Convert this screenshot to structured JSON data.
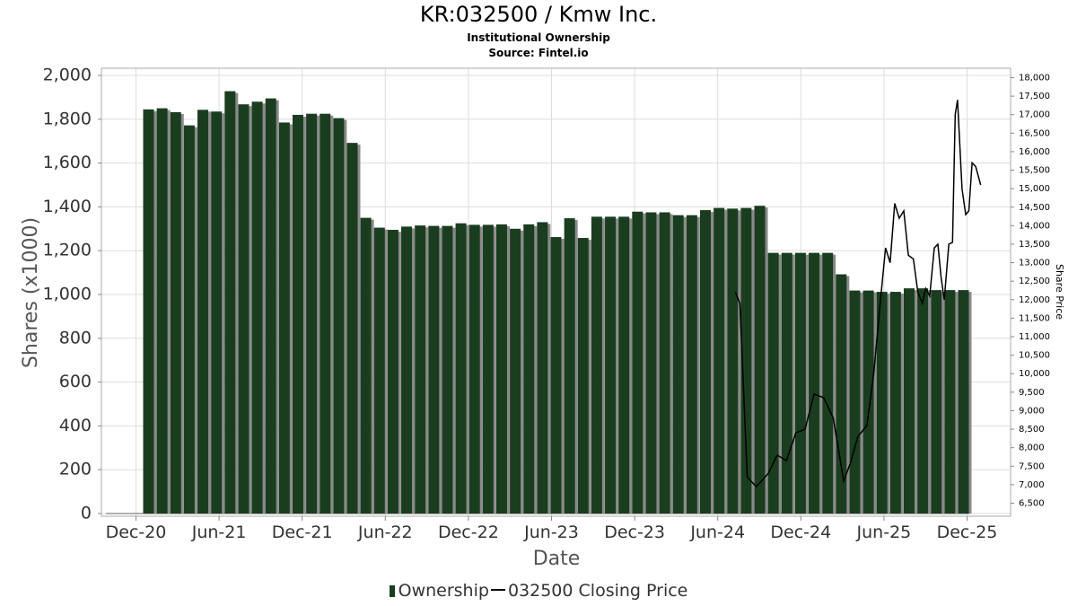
{
  "title": "KR:032500 / Kmw Inc.",
  "subtitle1": "Institutional Ownership",
  "subtitle2": "Source: Fintel.io",
  "legend": {
    "ownership": "Ownership",
    "price": "032500 Closing Price"
  },
  "colors": {
    "bar": "#1a3d1f",
    "bar_shadow": "#8a8a8a",
    "price_line": "#000000",
    "grid": "#dddddd"
  },
  "chart_data": {
    "type": "bar",
    "xlabel": "Date",
    "ylabel": "Shares (x1000)",
    "y2label": "Share Price",
    "ylim": [
      0,
      2000
    ],
    "y2lim": [
      6300,
      18200
    ],
    "grid": true,
    "legend_position": "bottom",
    "x_ticks": [
      "Dec-20",
      "Jun-21",
      "Dec-21",
      "Jun-22",
      "Dec-22",
      "Jun-23",
      "Dec-23",
      "Jun-24",
      "Dec-24",
      "Jun-25",
      "Dec-25"
    ],
    "y_ticks": [
      "0",
      "200",
      "400",
      "600",
      "800",
      "1,000",
      "1,200",
      "1,400",
      "1,600",
      "1,800",
      "2,000"
    ],
    "y2_ticks": [
      "6,500",
      "7,000",
      "7,500",
      "8,000",
      "8,500",
      "9,000",
      "9,500",
      "10,000",
      "10,500",
      "11,000",
      "11,500",
      "12,000",
      "12,500",
      "13,000",
      "13,500",
      "14,000",
      "14,500",
      "15,000",
      "15,500",
      "16,000",
      "16,500",
      "17,000",
      "17,500",
      "18,000"
    ],
    "series": [
      {
        "name": "Ownership",
        "type": "bar",
        "values": [
          1845,
          1850,
          1832,
          1772,
          1843,
          1835,
          1928,
          1868,
          1880,
          1895,
          1785,
          1820,
          1825,
          1825,
          1805,
          1692,
          1350,
          1305,
          1295,
          1310,
          1315,
          1313,
          1313,
          1325,
          1318,
          1318,
          1320,
          1300,
          1320,
          1330,
          1262,
          1348,
          1258,
          1355,
          1355,
          1355,
          1378,
          1375,
          1375,
          1362,
          1362,
          1385,
          1395,
          1392,
          1395,
          1405,
          1190,
          1190,
          1190,
          1190,
          1190,
          1092,
          1018,
          1018,
          1012,
          1012,
          1028,
          1028,
          1020,
          1020,
          1020
        ]
      },
      {
        "name": "032500 Closing Price",
        "type": "line",
        "points": [
          [
            "2024-07-10",
            12200
          ],
          [
            "2024-07-20",
            11900
          ],
          [
            "2024-08-05",
            7200
          ],
          [
            "2024-08-25",
            6950
          ],
          [
            "2024-09-20",
            7300
          ],
          [
            "2024-10-10",
            7800
          ],
          [
            "2024-10-30",
            7650
          ],
          [
            "2024-11-20",
            8400
          ],
          [
            "2024-12-10",
            8500
          ],
          [
            "2024-12-30",
            9450
          ],
          [
            "2025-01-20",
            9350
          ],
          [
            "2025-02-10",
            8800
          ],
          [
            "2025-03-05",
            7100
          ],
          [
            "2025-03-20",
            7600
          ],
          [
            "2025-04-05",
            8300
          ],
          [
            "2025-04-25",
            8600
          ],
          [
            "2025-05-10",
            10000
          ],
          [
            "2025-05-25",
            12000
          ],
          [
            "2025-06-05",
            13400
          ],
          [
            "2025-06-15",
            13000
          ],
          [
            "2025-06-25",
            14600
          ],
          [
            "2025-07-05",
            14200
          ],
          [
            "2025-07-15",
            14400
          ],
          [
            "2025-07-25",
            13200
          ],
          [
            "2025-08-05",
            13100
          ],
          [
            "2025-08-15",
            12200
          ],
          [
            "2025-08-25",
            11900
          ],
          [
            "2025-09-01",
            12300
          ],
          [
            "2025-09-10",
            12100
          ],
          [
            "2025-09-20",
            13400
          ],
          [
            "2025-09-28",
            13500
          ],
          [
            "2025-10-05",
            12600
          ],
          [
            "2025-10-12",
            12000
          ],
          [
            "2025-10-22",
            13500
          ],
          [
            "2025-10-30",
            13550
          ],
          [
            "2025-11-05",
            17000
          ],
          [
            "2025-11-10",
            17400
          ],
          [
            "2025-11-20",
            15000
          ],
          [
            "2025-11-28",
            14300
          ],
          [
            "2025-12-05",
            14400
          ],
          [
            "2025-12-12",
            15700
          ],
          [
            "2025-12-20",
            15600
          ],
          [
            "2025-12-31",
            15100
          ]
        ]
      }
    ]
  }
}
